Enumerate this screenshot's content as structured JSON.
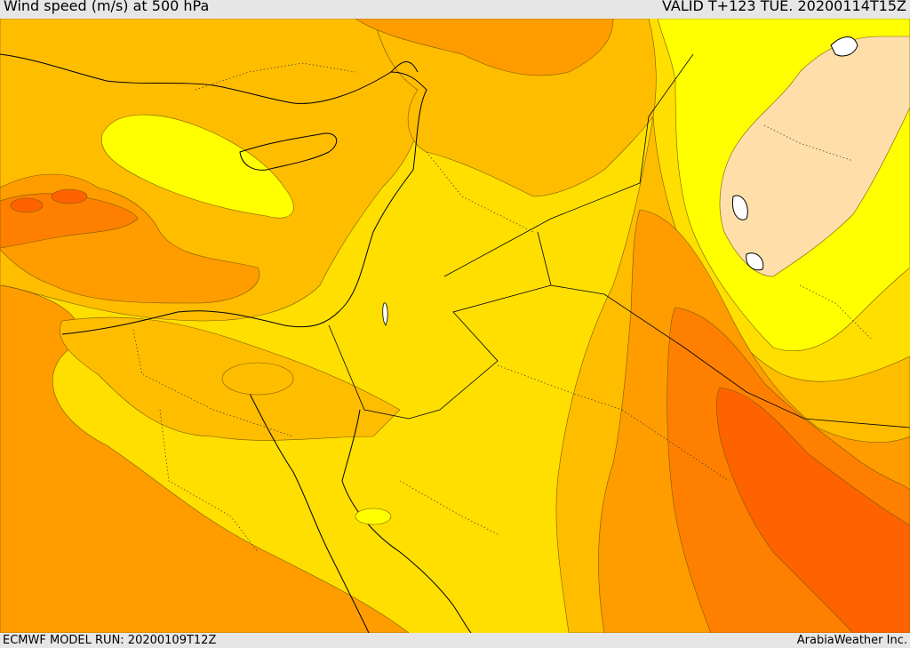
{
  "header": {
    "title": "Wind speed (m/s) at 500 hPa",
    "valid": "VALID T+123 TUE. 20200114T15Z"
  },
  "footer": {
    "model_run": "ECMWF MODEL RUN: 20200109T12Z",
    "credit": "ArabiaWeather Inc."
  },
  "colors": {
    "band_lowest": "#fedfaa",
    "band_1": "#ffff00",
    "band_2": "#ffdf00",
    "band_3": "#ffbd00",
    "band_4": "#ff9c00",
    "band_5": "#ff8000",
    "band_6": "#ff6200",
    "coastline": "#000000",
    "border": "#000000"
  }
}
